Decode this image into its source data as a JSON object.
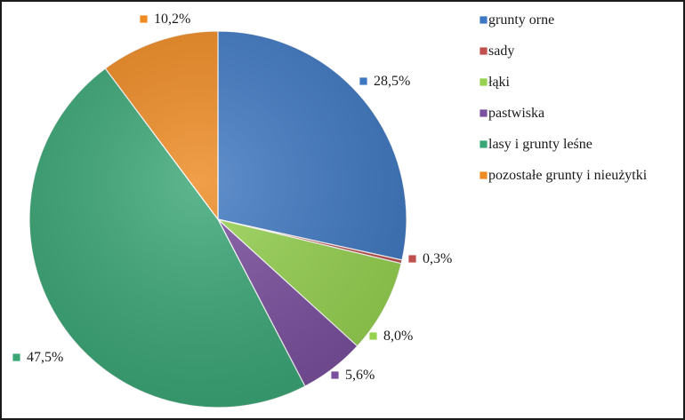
{
  "chart_data": {
    "type": "pie",
    "categories": [
      "grunty orne",
      "sady",
      "łąki",
      "pastwiska",
      "lasy i grunty leśne",
      "pozostałe grunty i nieużytki"
    ],
    "values": [
      28.5,
      0.3,
      8.0,
      5.6,
      47.5,
      10.2
    ],
    "data_labels": [
      "28,5%",
      "0,3%",
      "8,0%",
      "5,6%",
      "47,5%",
      "10,2%"
    ],
    "colors": [
      "#3f78c2",
      "#c0504d",
      "#96d250",
      "#7a4f9e",
      "#3aa676",
      "#ee8a22"
    ],
    "legend_position": "right",
    "start_angle": "top",
    "direction": "clockwise"
  }
}
